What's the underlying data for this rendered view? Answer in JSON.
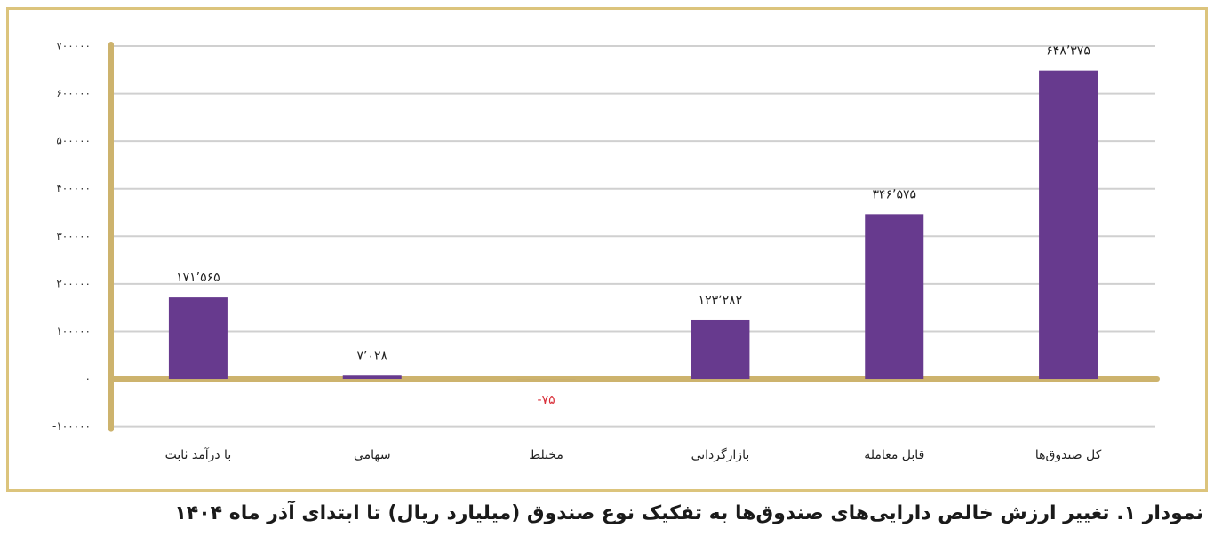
{
  "chart_data": {
    "type": "bar",
    "title": "نمودار ۱. تغییر ارزش خالص دارایی‌های صندوق‌ها به تفکیک نوع صندوق (میلیارد ریال) تا ابتدای آذر ماه ۱۴۰۴",
    "categories": [
      "با درآمد ثابت",
      "سهامی",
      "مختلط",
      "بازارگردانی",
      "قابل معامله",
      "کل صندوق‌ها"
    ],
    "values": [
      171565,
      7028,
      -75,
      123282,
      346575,
      648375
    ],
    "value_labels": [
      "۱۷۱٬۵۶۵",
      "۷٬۰۲۸",
      "-۷۵",
      "۱۲۳٬۲۸۲",
      "۳۴۶٬۵۷۵",
      "۶۴۸٬۳۷۵"
    ],
    "color": "#673a8e",
    "negative_label_color": "#d9303a",
    "ylim": [
      -100000,
      700000
    ],
    "yticks": [
      {
        "value": -100000,
        "label": "-۱۰۰۰۰۰"
      },
      {
        "value": 0,
        "label": "۰"
      },
      {
        "value": 100000,
        "label": "۱۰۰۰۰۰"
      },
      {
        "value": 200000,
        "label": "۲۰۰۰۰۰"
      },
      {
        "value": 300000,
        "label": "۳۰۰۰۰۰"
      },
      {
        "value": 400000,
        "label": "۴۰۰۰۰۰"
      },
      {
        "value": 500000,
        "label": "۵۰۰۰۰۰"
      },
      {
        "value": 600000,
        "label": "۶۰۰۰۰۰"
      },
      {
        "value": 700000,
        "label": "۷۰۰۰۰۰"
      }
    ],
    "grid": true
  }
}
